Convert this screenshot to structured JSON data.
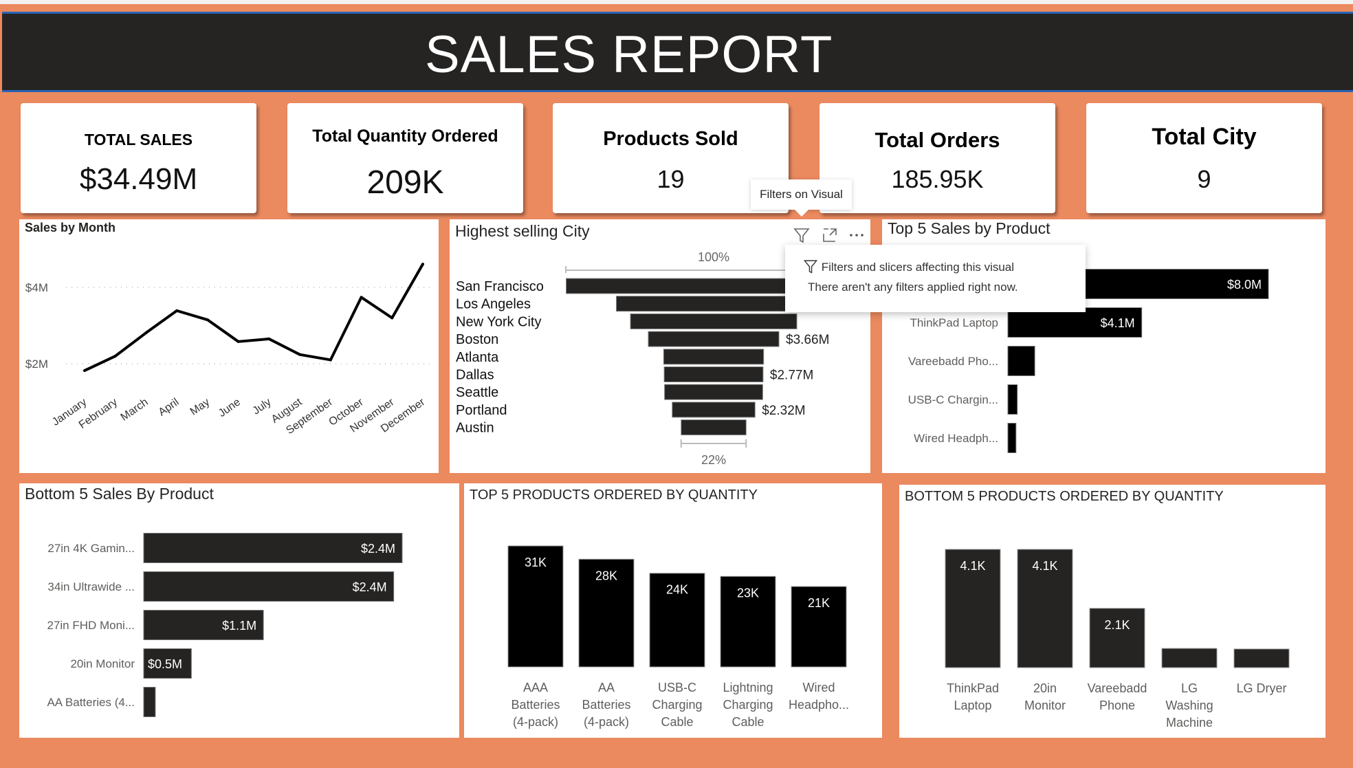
{
  "header": {
    "title": "SALES REPORT"
  },
  "kpis": [
    {
      "label": "TOTAL SALES",
      "value": "$34.49M"
    },
    {
      "label": "Total Quantity Ordered",
      "value": "209K"
    },
    {
      "label": "Products Sold",
      "value": "19"
    },
    {
      "label": "Total Orders",
      "value": "185.95K"
    },
    {
      "label": "Total City",
      "value": "9"
    }
  ],
  "tooltip": {
    "filters_on_visual": "Filters on Visual"
  },
  "filter_popup": {
    "line1": "Filters and slicers affecting this visual",
    "line2": "There aren't any filters applied right now."
  },
  "colors": {
    "background": "#EB895F",
    "header": "#252423",
    "bar_dark": "#252423",
    "bar_black": "#000000"
  },
  "chart_data": [
    {
      "id": "sales_by_month",
      "type": "line",
      "title": "Sales by Month",
      "categories": [
        "January",
        "February",
        "March",
        "April",
        "May",
        "June",
        "July",
        "August",
        "September",
        "October",
        "November",
        "December"
      ],
      "values": [
        1.82,
        2.2,
        2.81,
        3.39,
        3.15,
        2.58,
        2.65,
        2.24,
        2.1,
        3.74,
        3.2,
        4.61
      ],
      "unit": "$M",
      "yticks": [
        {
          "v": 2,
          "label": "$2M"
        },
        {
          "v": 4,
          "label": "$4M"
        }
      ],
      "grid": true
    },
    {
      "id": "highest_selling_city",
      "type": "funnel",
      "title": "Highest selling City",
      "categories": [
        "San Francisco",
        "Los Angeles",
        "New York City",
        "Boston",
        "Atlanta",
        "Dallas",
        "Seattle",
        "Portland",
        "Austin"
      ],
      "values": [
        8.26,
        5.45,
        4.66,
        3.66,
        2.8,
        2.77,
        2.75,
        2.32,
        1.82
      ],
      "data_labels": [
        "",
        "",
        "",
        "$3.66M",
        "",
        "$2.77M",
        "",
        "$2.32M",
        ""
      ],
      "top_label": "100%",
      "bottom_label": "22%"
    },
    {
      "id": "top5_sales_by_product",
      "type": "bar",
      "title": "Top 5 Sales by Product",
      "categories": [
        "",
        "ThinkPad Laptop",
        "Vareebadd Pho...",
        "USB-C Chargin...",
        "Wired Headph..."
      ],
      "values": [
        8.04,
        4.13,
        0.83,
        0.29,
        0.25
      ],
      "data_labels": [
        "$8.0M",
        "$4.1M",
        "",
        "",
        ""
      ]
    },
    {
      "id": "bottom5_sales_by_product",
      "type": "bar",
      "title": "Bottom 5 Sales By Product",
      "categories": [
        "27in 4K Gamin...",
        "34in Ultrawide ...",
        "27in FHD Moni...",
        "20in Monitor",
        "AA Batteries (4..."
      ],
      "values": [
        2.44,
        2.36,
        1.13,
        0.45,
        0.11
      ],
      "data_labels": [
        "$2.4M",
        "$2.4M",
        "$1.1M",
        "$0.5M",
        ""
      ]
    },
    {
      "id": "top5_products_by_quantity",
      "type": "column",
      "title": "TOP 5 PRODUCTS ORDERED BY QUANTITY",
      "categories": [
        [
          "AAA",
          "Batteries",
          "(4-pack)"
        ],
        [
          "AA",
          "Batteries",
          "(4-pack)"
        ],
        [
          "USB-C",
          "Charging",
          "Cable"
        ],
        [
          "Lightning",
          "Charging",
          "Cable"
        ],
        [
          "Wired",
          "Headpho..."
        ]
      ],
      "values": [
        31.0,
        27.6,
        24.0,
        23.2,
        20.6
      ],
      "data_labels": [
        "31K",
        "28K",
        "24K",
        "23K",
        "21K"
      ],
      "unit": "K"
    },
    {
      "id": "bottom5_products_by_quantity",
      "type": "column",
      "title": "BOTTOM 5 PRODUCTS ORDERED BY QUANTITY",
      "categories": [
        [
          "ThinkPad",
          "Laptop"
        ],
        [
          "20in",
          "Monitor"
        ],
        [
          "Vareebadd",
          "Phone"
        ],
        [
          "LG",
          "Washing",
          "Machine"
        ],
        [
          "LG Dryer"
        ]
      ],
      "values": [
        4.13,
        4.13,
        2.07,
        0.67,
        0.65
      ],
      "data_labels": [
        "4.1K",
        "4.1K",
        "2.1K",
        "",
        ""
      ],
      "unit": "K"
    }
  ]
}
